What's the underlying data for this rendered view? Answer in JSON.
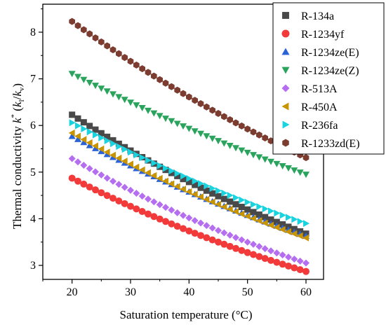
{
  "chart_data": {
    "type": "scatter",
    "xlabel": "Saturation temperature (°C)",
    "ylabel_parts": {
      "pre": "Thermal conductivity ",
      "k": "k",
      "star": "*",
      "open": " (",
      "kl": "k",
      "l": "l",
      "slash": "/",
      "kv": "k",
      "v": "v",
      "close": ")"
    },
    "xlim": [
      15,
      63
    ],
    "ylim": [
      2.7,
      8.6
    ],
    "xticks": [
      20,
      30,
      40,
      50,
      60
    ],
    "yticks": [
      3,
      4,
      5,
      6,
      7,
      8
    ],
    "grid": false,
    "legend_position": "top-right",
    "x": [
      20,
      21,
      22,
      23,
      24,
      25,
      26,
      27,
      28,
      29,
      30,
      31,
      32,
      33,
      34,
      35,
      36,
      37,
      38,
      39,
      40,
      41,
      42,
      43,
      44,
      45,
      46,
      47,
      48,
      49,
      50,
      51,
      52,
      53,
      54,
      55,
      56,
      57,
      58,
      59,
      60
    ],
    "series": [
      {
        "name": "R-134a",
        "marker": "square",
        "color": "#494949",
        "start": 6.23,
        "end": 3.68
      },
      {
        "name": "R-1234yf",
        "marker": "circle",
        "color": "#f23a3a",
        "start": 4.87,
        "end": 2.87
      },
      {
        "name": "R-1234ze(E)",
        "marker": "triangle-up",
        "color": "#2b62d6",
        "start": 5.77,
        "end": 3.63
      },
      {
        "name": "R-1234ze(Z)",
        "marker": "triangle-down",
        "color": "#2aa45c",
        "start": 7.11,
        "end": 4.95
      },
      {
        "name": "R-513A",
        "marker": "diamond",
        "color": "#b56ef0",
        "start": 5.29,
        "end": 3.05
      },
      {
        "name": "R-450A",
        "marker": "triangle-left",
        "color": "#c89400",
        "start": 5.84,
        "end": 3.59
      },
      {
        "name": "R-236fa",
        "marker": "triangle-right",
        "color": "#19d3df",
        "start": 6.06,
        "end": 3.9
      },
      {
        "name": "R-1233zd(E)",
        "marker": "hexagon",
        "color": "#7c3c30",
        "start": 8.23,
        "end": 5.31
      }
    ]
  }
}
